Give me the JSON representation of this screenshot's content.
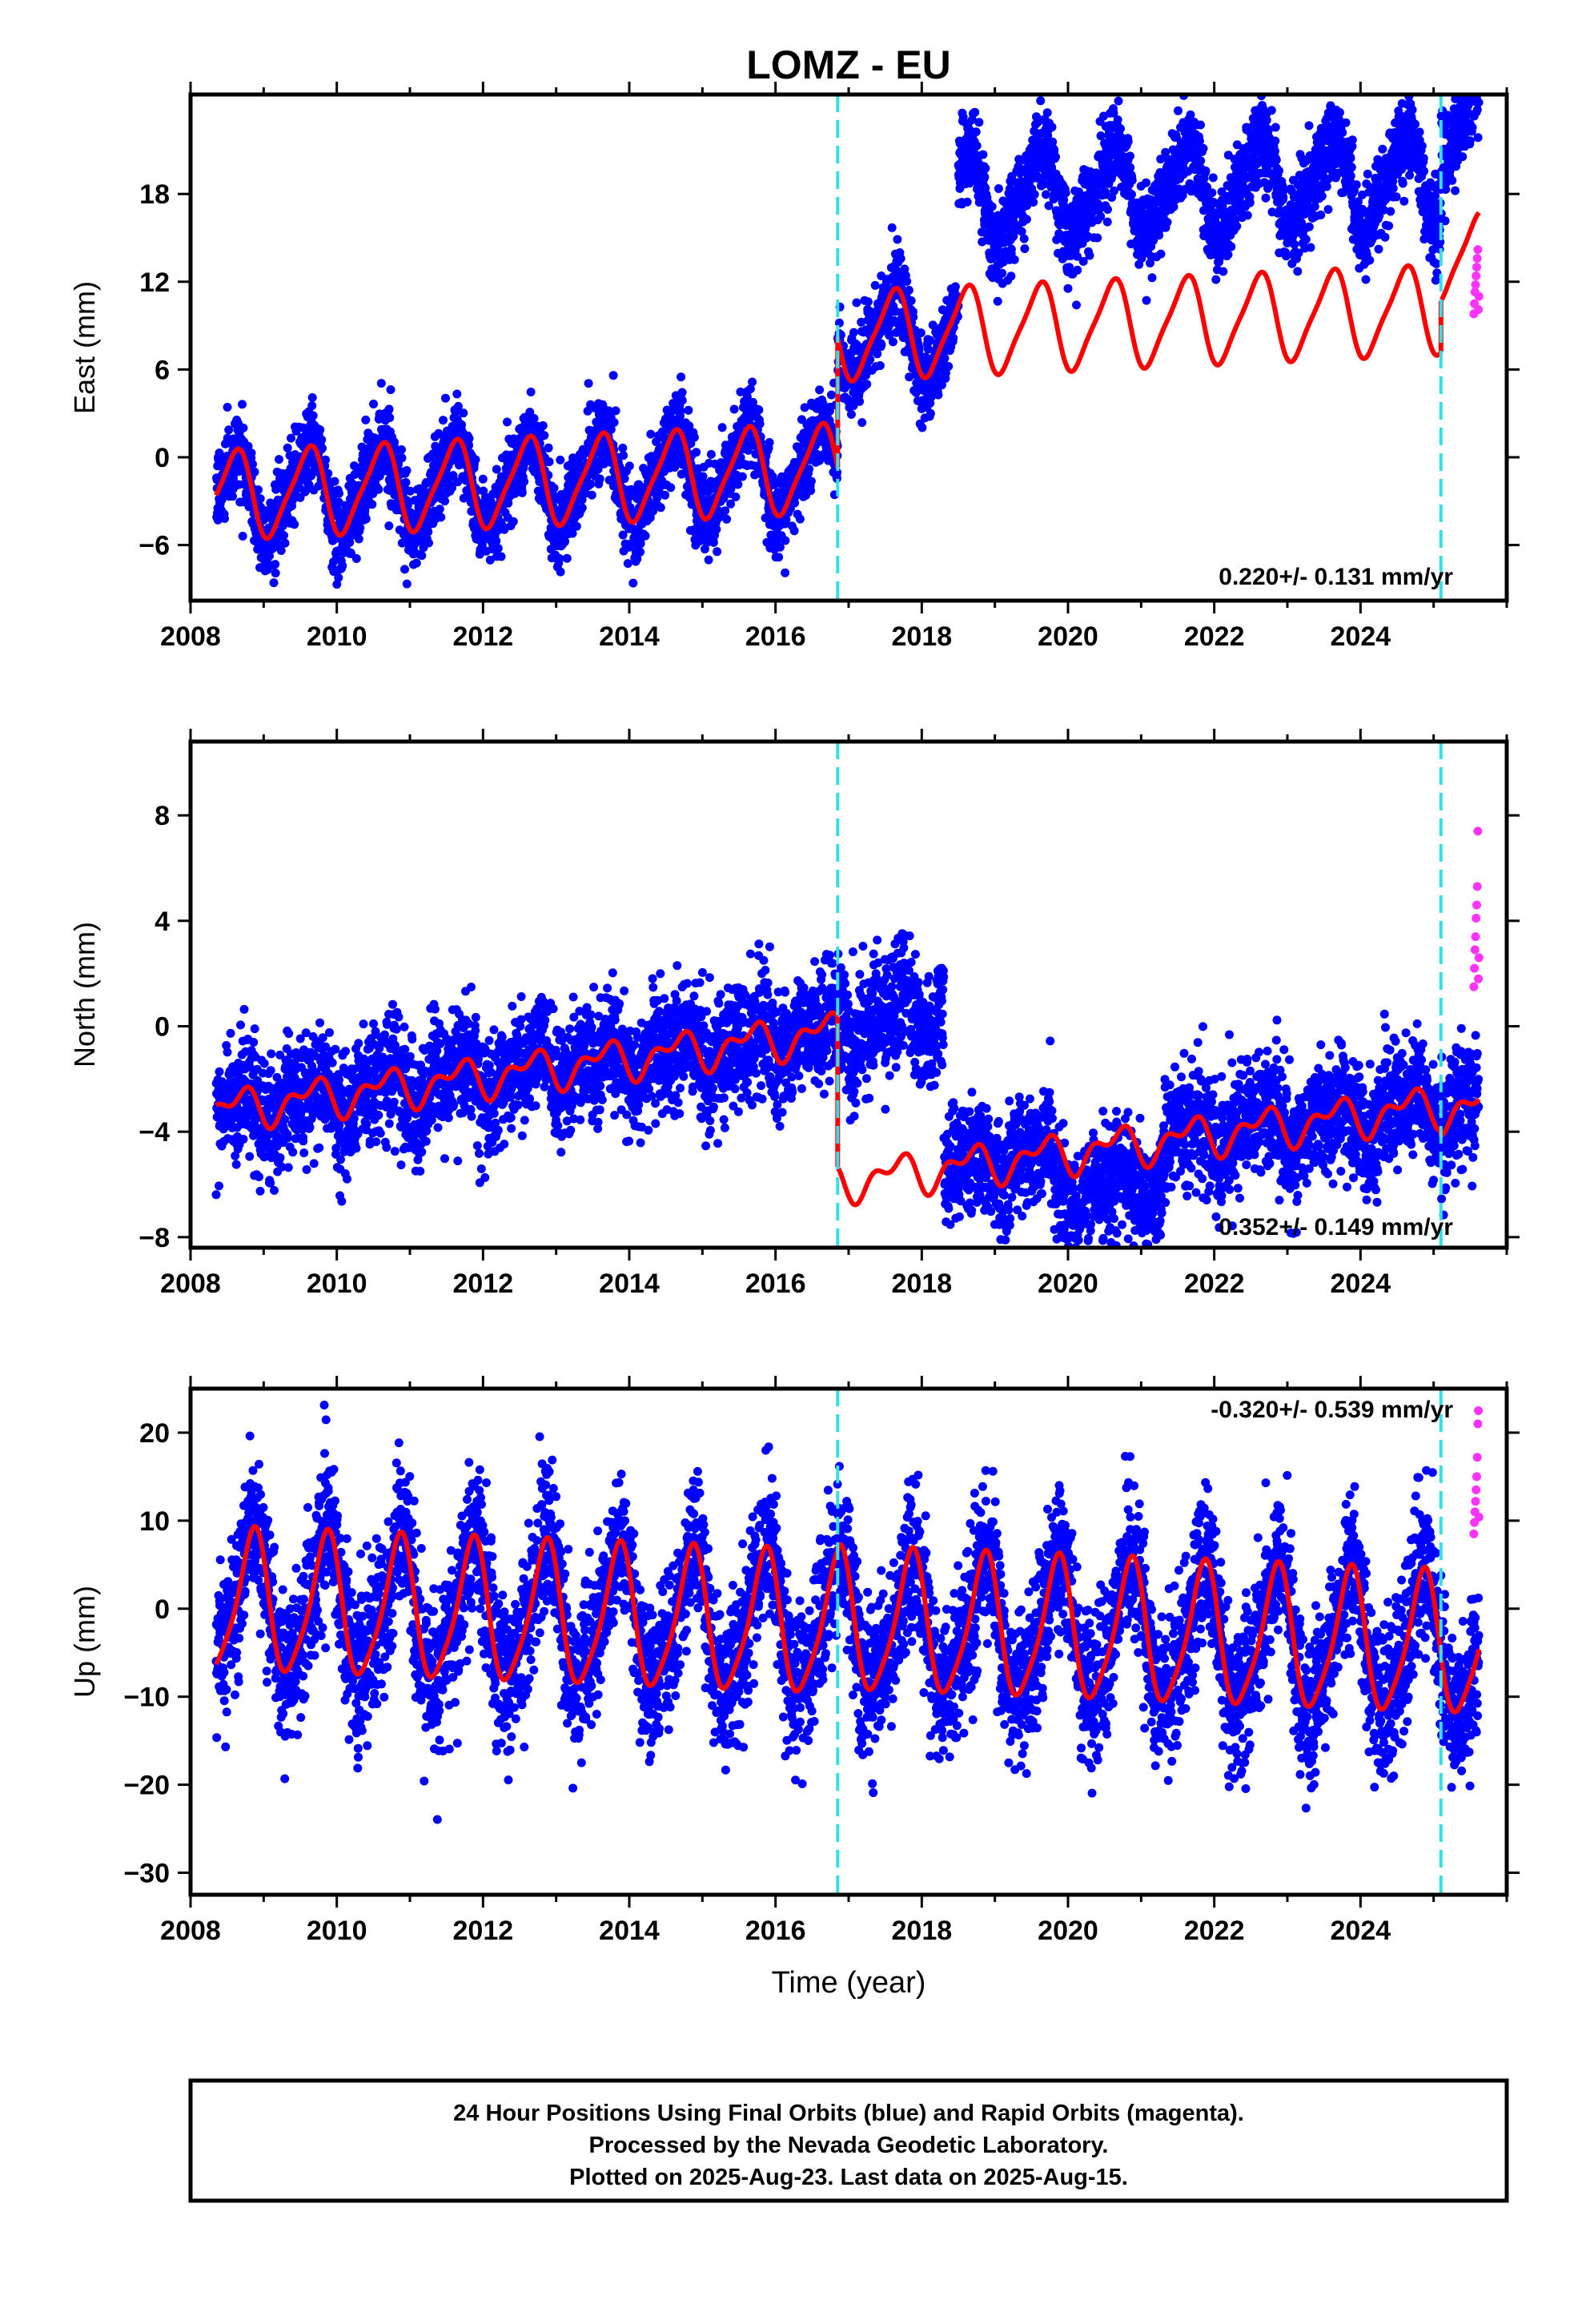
{
  "title": "LOMZ - EU",
  "footer": {
    "lines": [
      "24 Hour Positions Using Final Orbits (blue) and Rapid Orbits (magenta).",
      "Processed by the Nevada Geodetic Laboratory.",
      "Plotted on 2025-Aug-23. Last data on 2025-Aug-15."
    ]
  },
  "colors": {
    "final_points": "#0000ff",
    "rapid_points": "#ff33ff",
    "model": "#ff0000",
    "events": "#33e0e8",
    "axes": "#000000"
  },
  "chart_data": [
    {
      "type": "scatter",
      "name": "east",
      "ylabel": "East (mm)",
      "xlabel": "",
      "xlim": [
        2008.0,
        2026.0
      ],
      "ylim": [
        -9.8,
        24.8
      ],
      "x_ticks": [
        2008,
        2010,
        2012,
        2014,
        2016,
        2018,
        2020,
        2022,
        2024
      ],
      "y_ticks": [
        -6,
        0,
        6,
        12,
        18
      ],
      "events": [
        2016.85,
        2025.1
      ],
      "rate_label": "0.220+/- 0.131 mm/yr",
      "data_range": [
        2008.35,
        2025.62
      ],
      "offsets": [
        {
          "start": 2016.85,
          "end": 2018.5,
          "shift": 0.0
        },
        {
          "start": 2018.5,
          "end": 2025.62,
          "shift": 9.0
        }
      ],
      "model": {
        "intercept": -2.6,
        "rate": 0.22,
        "annual_amp": 2.9,
        "annual_phase": 0.35,
        "semi_amp": 0.6,
        "semi_phase": 0.1,
        "steps": [
          {
            "at": 2016.85,
            "size": 9.0
          },
          {
            "at": 2025.1,
            "size": 3.5
          }
        ]
      },
      "scatter_sd": 1.4,
      "rapid": {
        "x_start": 2025.55,
        "x_end": 2025.62,
        "values": [
          9.8,
          10.5,
          11.3,
          11.8,
          12.4,
          13.0,
          13.6,
          14.2,
          10.1,
          11.0
        ]
      }
    },
    {
      "type": "scatter",
      "name": "north",
      "ylabel": "North (mm)",
      "xlabel": "",
      "xlim": [
        2008.0,
        2026.0
      ],
      "ylim": [
        -8.4,
        10.8
      ],
      "x_ticks": [
        2008,
        2010,
        2012,
        2014,
        2016,
        2018,
        2020,
        2022,
        2024
      ],
      "y_ticks": [
        -8,
        -4,
        0,
        4,
        8
      ],
      "events": [
        2016.85,
        2025.1
      ],
      "rate_label": "0.352+/- 0.149 mm/yr",
      "data_range": [
        2008.35,
        2025.62
      ],
      "offsets": [
        {
          "start": 2016.85,
          "end": 2018.3,
          "shift": 6.0
        },
        {
          "start": 2019.8,
          "end": 2021.3,
          "shift": -1.5
        }
      ],
      "model": {
        "intercept": -3.2,
        "rate": 0.352,
        "annual_amp": 0.6,
        "annual_phase": 0.4,
        "semi_amp": 0.4,
        "semi_phase": 0.2,
        "steps": [
          {
            "at": 2016.85,
            "size": -5.7
          },
          {
            "at": 2025.1,
            "size": -0.2
          }
        ]
      },
      "scatter_sd": 1.1,
      "rapid": {
        "x_start": 2025.55,
        "x_end": 2025.62,
        "values": [
          1.5,
          2.2,
          2.9,
          3.4,
          4.1,
          4.6,
          5.3,
          7.4,
          1.8,
          2.6
        ]
      }
    },
    {
      "type": "scatter",
      "name": "up",
      "ylabel": "Up (mm)",
      "xlabel": "Time (year)",
      "xlim": [
        2008.0,
        2026.0
      ],
      "ylim": [
        -32.5,
        25.0
      ],
      "x_ticks": [
        2008,
        2010,
        2012,
        2014,
        2016,
        2018,
        2020,
        2022,
        2024
      ],
      "y_ticks": [
        -30,
        -20,
        -10,
        0,
        10,
        20
      ],
      "events": [
        2016.85,
        2025.1
      ],
      "rate_label": "-0.320+/- 0.539 mm/yr",
      "data_range": [
        2008.35,
        2025.62
      ],
      "offsets": [],
      "model": {
        "intercept": 0.6,
        "rate": -0.32,
        "annual_amp": 7.8,
        "annual_phase": 0.6,
        "semi_amp": 1.5,
        "semi_phase": 0.3,
        "steps": [
          {
            "at": 2016.85,
            "size": 0.5
          },
          {
            "at": 2025.1,
            "size": 0.0
          }
        ]
      },
      "scatter_sd": 4.3,
      "rapid": {
        "x_start": 2025.55,
        "x_end": 2025.62,
        "values": [
          8.5,
          9.8,
          11.0,
          12.2,
          13.5,
          15.0,
          17.2,
          21.0,
          22.5,
          10.4
        ]
      }
    }
  ]
}
